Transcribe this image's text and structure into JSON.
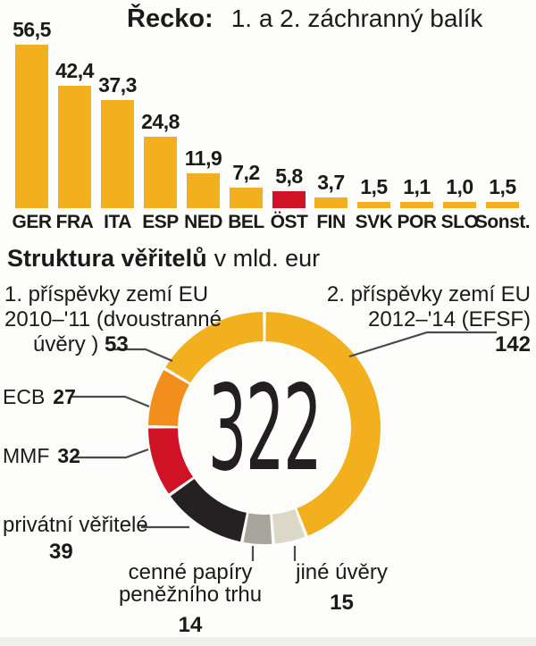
{
  "header": {
    "title_bold": "Řecko:",
    "title_rest": "1. a 2. záchranný balík"
  },
  "section2": {
    "heading_bold": "Struktura věřitelů",
    "heading_rest": "v mld. eur"
  },
  "colors": {
    "gold": "#F2B01E",
    "red": "#CF1225",
    "orange": "#F28E1C",
    "black": "#252122",
    "gray": "#A8A59C",
    "beige": "#DCD8C8",
    "callout_line": "#4a4a4c",
    "text": "#1a1a1a"
  },
  "chart_data": [
    {
      "type": "bar",
      "title": "Řecko: 1. a 2. záchranný balík",
      "categories": [
        "GER",
        "FRA",
        "ITA",
        "ESP",
        "NED",
        "BEL",
        "ÖST",
        "FIN",
        "SVK",
        "POR",
        "SLO",
        "Sonst."
      ],
      "values": [
        56.5,
        42.4,
        37.3,
        24.8,
        11.9,
        7.2,
        5.8,
        3.7,
        1.5,
        1.1,
        1.0,
        1.5
      ],
      "value_labels": [
        "56,5",
        "42,4",
        "37,3",
        "24,8",
        "11,9",
        "7,2",
        "5,8",
        "3,7",
        "1,5",
        "1,1",
        "1,0",
        "1,5"
      ],
      "bar_color_default": "#F2B01E",
      "bar_color_highlight": "#CF1225",
      "highlight_index": 6,
      "xlabel": "",
      "ylabel": "",
      "grid": false,
      "legend": false
    },
    {
      "type": "pie",
      "subtype": "donut",
      "title": "Struktura věřitelů v mld. eur",
      "total": 322,
      "total_label": "322",
      "start_angle_deg_from_top_clockwise": 0,
      "segments": [
        {
          "id": "efsf",
          "label": "2. příspěvky zemí EU 2012–'14 (EFSF)",
          "value": 142,
          "color": "#F2B01E"
        },
        {
          "id": "jine-uvery",
          "label": "jiné úvěry",
          "value": 15,
          "color": "#DCD8C8"
        },
        {
          "id": "cenne-papiry",
          "label": "cenné papíry peněžního trhu",
          "value": 14,
          "color": "#A8A59C"
        },
        {
          "id": "privatni-veritele",
          "label": "privátní věřitelé",
          "value": 39,
          "color": "#252122"
        },
        {
          "id": "mmf",
          "label": "MMF",
          "value": 32,
          "color": "#CF1225"
        },
        {
          "id": "ecb",
          "label": "ECB",
          "value": 27,
          "color": "#F28E1C"
        },
        {
          "id": "bilateral",
          "label": "1. příspěvky zemí EU 2010–'11 (dvoustranné úvěry)",
          "value": 53,
          "color": "#F2B01E"
        }
      ]
    }
  ],
  "donut_labels": {
    "l1a": "1. příspěvky zemí EU",
    "l1b": "2010–'11 (dvoustranné",
    "l1c": "úvěry )",
    "l1v": "53",
    "l2a": "2. příspěvky zemí EU",
    "l2b": "2012–'14 (EFSF)",
    "l2v": "142",
    "ecb": "ECB",
    "ecb_v": "27",
    "mmf": "MMF",
    "mmf_v": "32",
    "priv": "privátní věřitelé",
    "priv_v": "39",
    "cenne1": "cenné papíry",
    "cenne2": "peněžního trhu",
    "cenne_v": "14",
    "jine": "jiné úvěry",
    "jine_v": "15"
  }
}
